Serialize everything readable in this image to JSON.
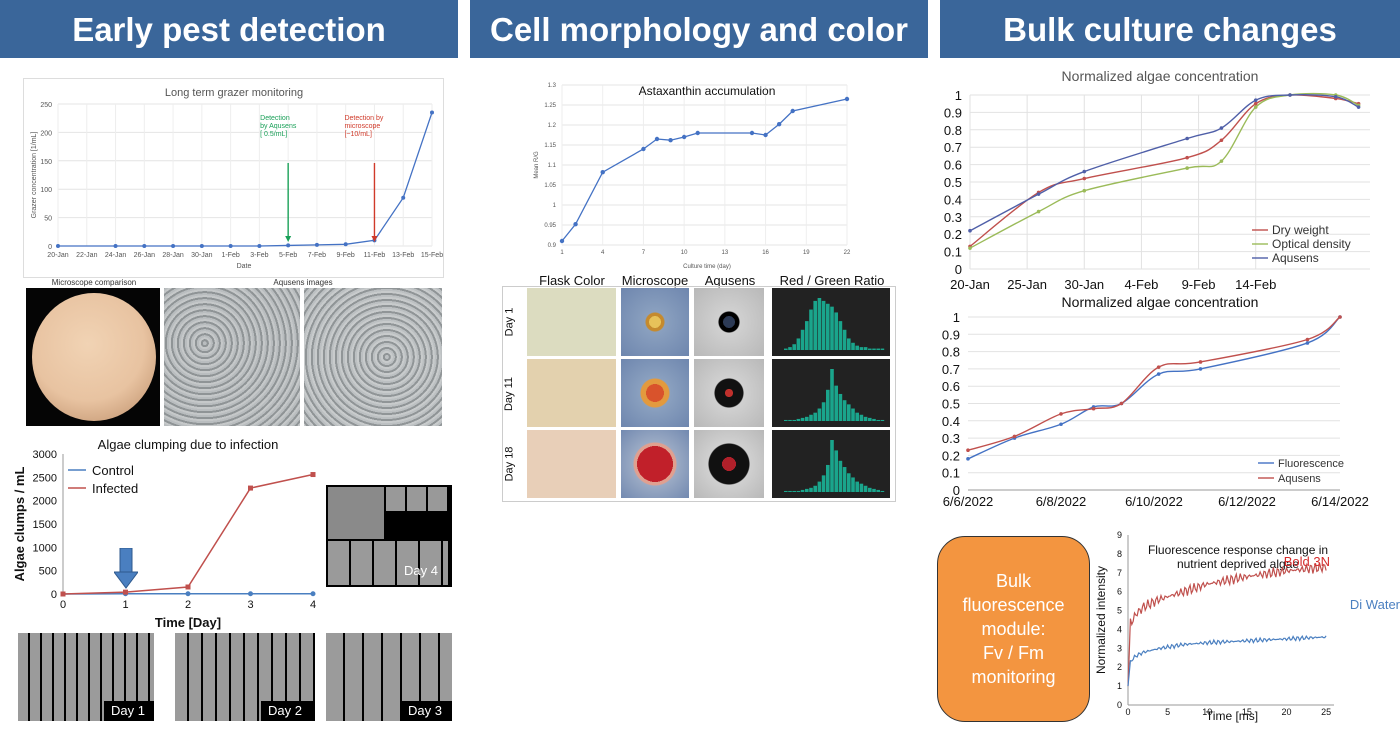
{
  "headers": [
    "Early pest detection",
    "Cell morphology and color",
    "Bulk culture changes"
  ],
  "colors": {
    "header_bg": "#3a669a",
    "blue": "#4472c4",
    "red": "#c0504d",
    "green": "#9bbb59",
    "orange": "#f39540",
    "teal": "#1aa58c"
  },
  "chart_data": [
    {
      "id": "grazer",
      "type": "line",
      "title": "Long term grazer monitoring",
      "xlabel": "Date",
      "ylabel": "Grazer concentration [1/mL]",
      "ylim": [
        0,
        250
      ],
      "yticks": [
        0,
        50,
        100,
        150,
        200,
        250
      ],
      "categories": [
        "20-Jan",
        "22-Jan",
        "24-Jan",
        "26-Jan",
        "28-Jan",
        "30-Jan",
        "1-Feb",
        "3-Feb",
        "5-Feb",
        "7-Feb",
        "9-Feb",
        "11-Feb",
        "13-Feb",
        "15-Feb"
      ],
      "x": [
        0,
        4,
        6,
        8,
        10,
        12,
        14,
        16,
        18,
        20,
        22,
        24,
        26
      ],
      "values": [
        0,
        0,
        0,
        0,
        0,
        0,
        0,
        1,
        2,
        3,
        10,
        85,
        235
      ],
      "annotations": [
        {
          "text": [
            "Detection",
            "by Aqusens",
            "[ 0.5/mL]"
          ],
          "x": 16,
          "color": "#1aa058"
        },
        {
          "text": [
            "Detection by",
            "microscope",
            "[~10/mL]"
          ],
          "x": 22,
          "color": "#d03a2a"
        }
      ]
    },
    {
      "id": "clumping",
      "type": "line",
      "title": "Algae clumping due to infection",
      "xlabel": "Time [Day]",
      "ylabel": "Algae clumps / mL",
      "ylim": [
        0,
        3000
      ],
      "yticks": [
        0,
        500,
        1000,
        1500,
        2000,
        2500,
        3000
      ],
      "x": [
        0,
        1,
        2,
        3,
        4
      ],
      "series": [
        {
          "name": "Control",
          "values": [
            0,
            5,
            5,
            5,
            5
          ],
          "color": "#4a7fc0"
        },
        {
          "name": "Infected",
          "values": [
            0,
            40,
            150,
            2270,
            2560
          ],
          "color": "#c0504d"
        }
      ]
    },
    {
      "id": "astaxanthin",
      "type": "line",
      "title": "Astaxanthin accumulation",
      "xlabel": "Culture time (day)",
      "ylabel": "Mean R/G",
      "ylim": [
        0.9,
        1.3
      ],
      "yticks": [
        0.9,
        0.95,
        1,
        1.05,
        1.1,
        1.15,
        1.2,
        1.25,
        1.3
      ],
      "xticks": [
        1,
        4,
        7,
        10,
        13,
        16,
        19,
        22
      ],
      "x": [
        1,
        2,
        4,
        7,
        8,
        9,
        10,
        11,
        15,
        16,
        17,
        18,
        22
      ],
      "values": [
        0.91,
        0.952,
        1.082,
        1.14,
        1.165,
        1.162,
        1.17,
        1.18,
        1.18,
        1.175,
        1.202,
        1.235,
        1.265
      ]
    },
    {
      "id": "norm1",
      "type": "line",
      "title": "Normalized algae concentration",
      "ylim": [
        0,
        1
      ],
      "yticks": [
        0,
        0.1,
        0.2,
        0.3,
        0.4,
        0.5,
        0.6,
        0.7,
        0.8,
        0.9,
        1
      ],
      "xticks": [
        "20-Jan",
        "25-Jan",
        "30-Jan",
        "4-Feb",
        "9-Feb",
        "14-Feb"
      ],
      "series": [
        {
          "name": "Dry weight",
          "color": "#c0504d",
          "x": [
            0,
            6,
            10,
            19,
            22,
            25,
            28,
            32,
            34
          ],
          "values": [
            0.13,
            0.44,
            0.52,
            0.64,
            0.74,
            0.95,
            1.0,
            0.98,
            0.95
          ]
        },
        {
          "name": "Optical density",
          "color": "#9bbb59",
          "x": [
            0,
            6,
            10,
            19,
            22,
            25,
            28,
            32,
            34
          ],
          "values": [
            0.12,
            0.33,
            0.45,
            0.58,
            0.62,
            0.93,
            1.0,
            1.0,
            0.94
          ]
        },
        {
          "name": "Aqusens",
          "color": "#4f5fa8",
          "x": [
            0,
            6,
            10,
            19,
            22,
            25,
            28,
            32,
            34
          ],
          "values": [
            0.22,
            0.43,
            0.56,
            0.75,
            0.81,
            0.97,
            1.0,
            0.99,
            0.93
          ]
        }
      ]
    },
    {
      "id": "norm2",
      "type": "line",
      "title": "Normalized algae concentration",
      "ylim": [
        0,
        1
      ],
      "yticks": [
        0,
        0.1,
        0.2,
        0.3,
        0.4,
        0.5,
        0.6,
        0.7,
        0.8,
        0.9,
        1
      ],
      "xticks": [
        "6/6/2022",
        "6/8/2022",
        "6/10/2022",
        "6/12/2022",
        "6/14/2022"
      ],
      "series": [
        {
          "name": "Fluorescence",
          "color": "#4472c4",
          "x": [
            0,
            1,
            2,
            2.7,
            3.3,
            4.1,
            5,
            7.3,
            8
          ],
          "values": [
            0.18,
            0.3,
            0.38,
            0.48,
            0.5,
            0.67,
            0.7,
            0.85,
            1.0
          ]
        },
        {
          "name": "Aqusens",
          "color": "#c0504d",
          "x": [
            0,
            1,
            2,
            2.7,
            3.3,
            4.1,
            5,
            7.3,
            8
          ],
          "values": [
            0.23,
            0.31,
            0.44,
            0.47,
            0.5,
            0.71,
            0.74,
            0.87,
            1.0
          ]
        }
      ]
    },
    {
      "id": "fluorescence",
      "type": "line",
      "title": "Fluorescence response change in nutrient deprived algae",
      "xlabel": "Time [ms]",
      "ylabel": "Normalized intensity",
      "ylim": [
        0,
        9
      ],
      "yticks": [
        0,
        1,
        2,
        3,
        4,
        5,
        6,
        7,
        8,
        9
      ],
      "xticks": [
        0,
        5,
        10,
        15,
        20,
        25
      ],
      "series": [
        {
          "name": "Bold 3N",
          "color": "#c0504d",
          "x": [
            0,
            0.3,
            1,
            2,
            4,
            7,
            10,
            15,
            20,
            25
          ],
          "values": [
            1,
            4.3,
            4.8,
            5.2,
            5.6,
            6.0,
            6.4,
            6.8,
            7.1,
            7.3
          ]
        },
        {
          "name": "Di Water",
          "color": "#4a7fc0",
          "x": [
            0,
            0.3,
            1,
            2,
            4,
            7,
            10,
            15,
            20,
            25
          ],
          "values": [
            1,
            2.3,
            2.6,
            2.8,
            3.0,
            3.2,
            3.3,
            3.4,
            3.5,
            3.6
          ]
        }
      ]
    }
  ],
  "left": {
    "microscope_caption": "Microscope comparison",
    "aqusens_caption": "Aqusens images",
    "days": [
      "Day 4",
      "Day 1",
      "Day 2",
      "Day 3"
    ]
  },
  "middle": {
    "columns": [
      "Flask Color",
      "Microscope",
      "Aqusens",
      "Red / Green Ratio"
    ],
    "rows": [
      "Day 1",
      "Day 11",
      "Day 18"
    ]
  },
  "right": {
    "module_text": [
      "Bulk",
      "fluorescence",
      "module:",
      "Fv / Fm",
      "monitoring"
    ]
  }
}
